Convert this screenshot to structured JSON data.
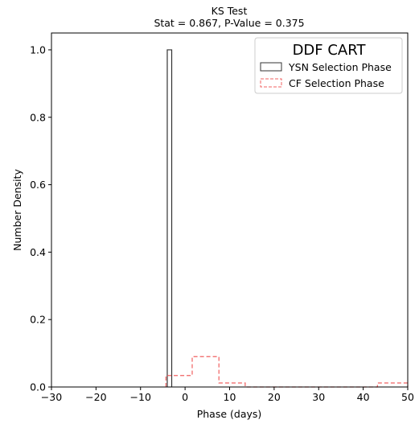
{
  "chart_data": {
    "type": "histogram",
    "title": "KS Test",
    "subtitle": "Stat = 0.867, P-Value = 0.375",
    "xlabel": "Phase (days)",
    "ylabel": "Number Density",
    "xlim": [
      -30,
      50
    ],
    "ylim": [
      0,
      1.05
    ],
    "xticks": [
      -30,
      -20,
      -10,
      0,
      10,
      20,
      30,
      40,
      50
    ],
    "xtick_labels": [
      "−30",
      "−20",
      "−10",
      "0",
      "10",
      "20",
      "30",
      "40",
      "50"
    ],
    "yticks": [
      0.0,
      0.2,
      0.4,
      0.6,
      0.8,
      1.0
    ],
    "ytick_labels": [
      "0.0",
      "0.2",
      "0.4",
      "0.6",
      "0.8",
      "1.0"
    ],
    "grid": false,
    "legend": {
      "title": "DDF CART",
      "placement": "top-right"
    },
    "series": [
      {
        "name": "YSN Selection Phase",
        "style": "solid",
        "color": "#333333",
        "bin_edges": [
          -4.0,
          -3.0
        ],
        "values": [
          1.0
        ]
      },
      {
        "name": "CF Selection Phase",
        "style": "dashed",
        "color": "#f06060",
        "bin_edges": [
          -4.3,
          1.6,
          7.6,
          13.5,
          19.4,
          25.4,
          31.3,
          37.3,
          43.2,
          49.2,
          50
        ],
        "values": [
          0.034,
          0.09,
          0.012,
          0.0,
          0.0,
          0.0,
          0.0,
          0.0,
          0.012,
          0.012
        ]
      }
    ]
  }
}
